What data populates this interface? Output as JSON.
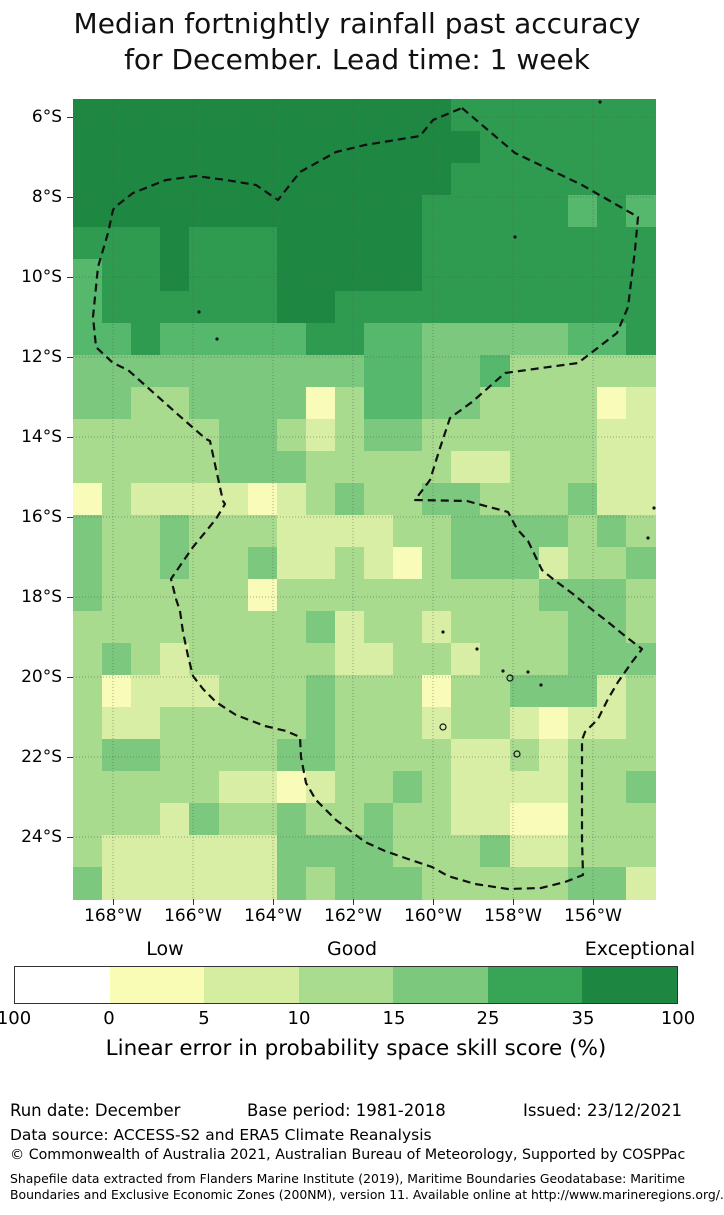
{
  "title": {
    "line1": "Median fortnightly rainfall past accuracy",
    "line2": "for December. Lead time: 1 week"
  },
  "chart_data": {
    "type": "heatmap",
    "title": "Median fortnightly rainfall past accuracy for December. Lead time: 1 week",
    "x_axis": {
      "tick_labels": [
        "168°W",
        "166°W",
        "164°W",
        "162°W",
        "160°W",
        "158°W",
        "156°W"
      ]
    },
    "y_axis": {
      "tick_labels": [
        "6°S",
        "8°S",
        "10°S",
        "12°S",
        "14°S",
        "16°S",
        "18°S",
        "20°S",
        "22°S",
        "24°S"
      ]
    },
    "palette": {
      "1": "#f9fcb8",
      "2": "#d7eea4",
      "3": "#a9db8f",
      "4": "#7cc87e",
      "5": "#55b86c",
      "6": "#2f9b51",
      "7": "#1e8742"
    },
    "grid_rows": [
      "77777777777776666666",
      "77777777777777666666",
      "77777777777776666666",
      "77777777777766666565",
      "66676667777766666666",
      "56676667777766666666",
      "56666667766666666666",
      "55655555665544444556",
      "44444444445544533333",
      "44334444135544333312",
      "33333443234433333322",
      "33333444333332233322",
      "13222212343344333422",
      "43343332222334444343",
      "43343342232134442334",
      "43333313333333334443",
      "33333333423323333443",
      "34323333322332333444",
      "31222333433313344423",
      "32233333433323321223",
      "34433334433332232333",
      "33333221233432222334",
      "33324334334332211333",
      "32222224444333422333",
      "42222224344433333442"
    ],
    "eez_boundary": [
      [
        462,
        108
      ],
      [
        515,
        153
      ],
      [
        582,
        185
      ],
      [
        638,
        217
      ],
      [
        635,
        250
      ],
      [
        628,
        307
      ],
      [
        617,
        333
      ],
      [
        578,
        363
      ],
      [
        505,
        373
      ],
      [
        472,
        402
      ],
      [
        450,
        418
      ],
      [
        440,
        448
      ],
      [
        430,
        480
      ],
      [
        415,
        500
      ],
      [
        467,
        501
      ],
      [
        508,
        512
      ],
      [
        517,
        529
      ],
      [
        528,
        541
      ],
      [
        542,
        570
      ],
      [
        553,
        579
      ],
      [
        573,
        594
      ],
      [
        595,
        612
      ],
      [
        608,
        622
      ],
      [
        625,
        636
      ],
      [
        642,
        649
      ],
      [
        632,
        662
      ],
      [
        618,
        682
      ],
      [
        608,
        699
      ],
      [
        598,
        719
      ],
      [
        585,
        732
      ],
      [
        582,
        740
      ],
      [
        582,
        789
      ],
      [
        582,
        839
      ],
      [
        583,
        875
      ],
      [
        565,
        882
      ],
      [
        541,
        888
      ],
      [
        508,
        889
      ],
      [
        475,
        884
      ],
      [
        448,
        876
      ],
      [
        432,
        867
      ],
      [
        408,
        859
      ],
      [
        385,
        851
      ],
      [
        365,
        842
      ],
      [
        336,
        820
      ],
      [
        316,
        800
      ],
      [
        306,
        783
      ],
      [
        301,
        757
      ],
      [
        300,
        737
      ],
      [
        286,
        731
      ],
      [
        265,
        726
      ],
      [
        236,
        715
      ],
      [
        216,
        702
      ],
      [
        203,
        689
      ],
      [
        193,
        676
      ],
      [
        188,
        656
      ],
      [
        183,
        632
      ],
      [
        180,
        611
      ],
      [
        176,
        599
      ],
      [
        171,
        579
      ],
      [
        173,
        576
      ],
      [
        193,
        547
      ],
      [
        216,
        519
      ],
      [
        225,
        504
      ],
      [
        223,
        501
      ],
      [
        216,
        469
      ],
      [
        210,
        441
      ],
      [
        206,
        439
      ],
      [
        183,
        419
      ],
      [
        128,
        370
      ],
      [
        113,
        363
      ],
      [
        96,
        347
      ],
      [
        93,
        317
      ],
      [
        98,
        267
      ],
      [
        108,
        233
      ],
      [
        113,
        210
      ],
      [
        115,
        207
      ],
      [
        133,
        193
      ],
      [
        166,
        180
      ],
      [
        196,
        176
      ],
      [
        226,
        180
      ],
      [
        256,
        185
      ],
      [
        278,
        200
      ],
      [
        300,
        172
      ],
      [
        336,
        152
      ],
      [
        365,
        145
      ],
      [
        420,
        136
      ],
      [
        433,
        120
      ]
    ],
    "island_dots": [
      [
        199,
        312
      ],
      [
        217,
        339
      ],
      [
        515,
        237
      ],
      [
        600,
        102
      ],
      [
        443,
        632
      ],
      [
        477,
        649
      ],
      [
        503,
        671
      ],
      [
        528,
        672
      ],
      [
        541,
        685
      ],
      [
        654,
        508
      ],
      [
        648,
        538
      ]
    ],
    "island_rings": [
      [
        510,
        678
      ],
      [
        443,
        727
      ],
      [
        517,
        754
      ]
    ],
    "colorbar": {
      "zone_labels": [
        "Low",
        "Good",
        "Exceptional"
      ],
      "tick_labels": [
        "100",
        "0",
        "5",
        "10",
        "15",
        "25",
        "35",
        "100"
      ],
      "tick_values": [
        -100,
        0,
        5,
        10,
        15,
        25,
        35,
        100
      ],
      "segment_colors": [
        "#ffffff",
        "#f9fcb5",
        "#d5eda0",
        "#a9dc8e",
        "#7cc87c",
        "#38a456",
        "#1d8641"
      ],
      "caption": "Linear error in probability space skill score (%)"
    }
  },
  "footer": {
    "run_date": "Run date: December",
    "base_period": "Base period: 1981-2018",
    "issued": "Issued: 23/12/2021",
    "data_source": "Data source: ACCESS-S2 and ERA5 Climate Reanalysis",
    "copyright": "© Commonwealth of Australia 2021, Australian Bureau of Meteorology, Supported by COSPPac",
    "shapefile_lines": [
      "Shapefile data extracted from Flanders Marine Institute (2019), Maritime Boundaries Geodatabase: Maritime",
      "Boundaries and Exclusive Economic Zones (200NM), version 11. Available online at http://www.marineregions.org/."
    ]
  }
}
